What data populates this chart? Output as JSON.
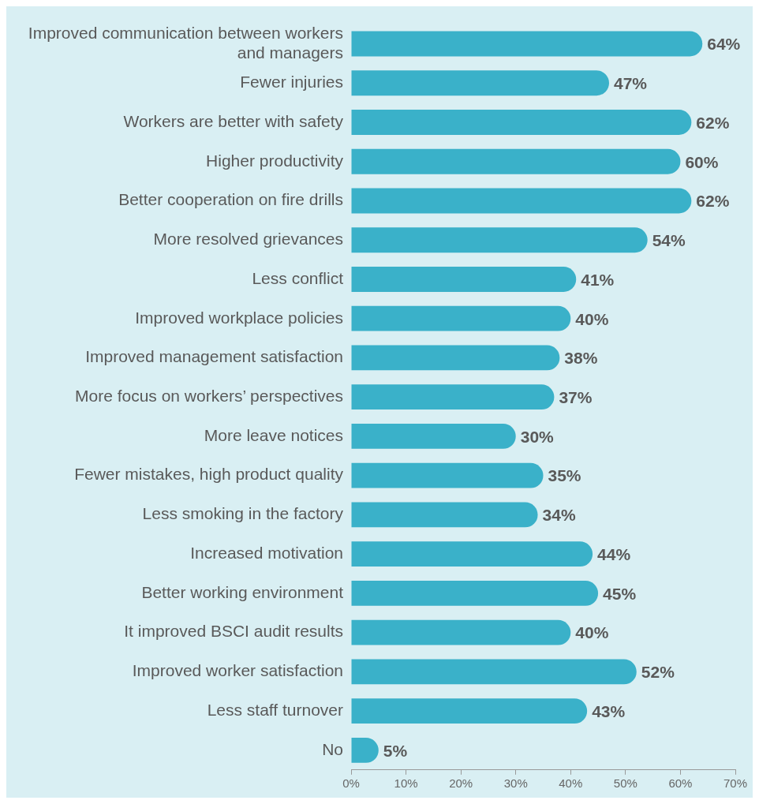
{
  "chart_data": {
    "type": "bar",
    "orientation": "horizontal",
    "categories": [
      "Improved communication between workers and managers",
      "Fewer injuries",
      "Workers are better with safety",
      "Higher productivity",
      "Better cooperation on fire drills",
      "More resolved grievances",
      "Less conflict",
      "Improved workplace policies",
      "Improved management satisfaction",
      "More focus on workers’ perspectives",
      "More leave notices",
      "Fewer mistakes, high product quality",
      "Less smoking in the factory",
      "Increased motivation",
      "Better working environment",
      "It improved BSCI audit results",
      "Improved worker satisfaction",
      "Less staff turnover",
      "No"
    ],
    "values": [
      64,
      47,
      62,
      60,
      62,
      54,
      41,
      40,
      38,
      37,
      30,
      35,
      34,
      44,
      45,
      40,
      52,
      43,
      5
    ],
    "value_labels": [
      "64%",
      "47%",
      "62%",
      "60%",
      "62%",
      "54%",
      "41%",
      "40%",
      "38%",
      "37%",
      "30%",
      "35%",
      "34%",
      "44%",
      "45%",
      "40%",
      "52%",
      "43%",
      "5%"
    ],
    "color": "#3ab1c9",
    "xlim": [
      0,
      70
    ],
    "xticks": [
      {
        "value": 0,
        "label": "0%"
      },
      {
        "value": 10,
        "label": "10%"
      },
      {
        "value": 20,
        "label": "20%"
      },
      {
        "value": 30,
        "label": "30%"
      },
      {
        "value": 40,
        "label": "40%"
      },
      {
        "value": 50,
        "label": "50%"
      },
      {
        "value": 60,
        "label": "60%"
      },
      {
        "value": 70,
        "label": "70%"
      }
    ],
    "grid": false,
    "legend": false
  }
}
